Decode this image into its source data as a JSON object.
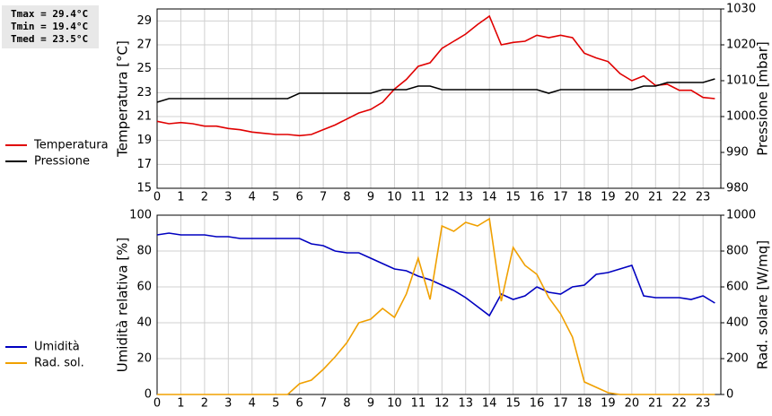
{
  "chart_data": [
    {
      "type": "line",
      "annotations": [
        "Tmax = 29.4°C",
        "Tmin = 19.4°C",
        "Tmed = 23.5°C"
      ],
      "y_label": "Temperatura [°C]",
      "y2_label": "Pressione [mbar]",
      "x": [
        0,
        0.5,
        1,
        1.5,
        2,
        2.5,
        3,
        3.5,
        4,
        4.5,
        5,
        5.5,
        6,
        6.5,
        7,
        7.5,
        8,
        8.5,
        9,
        9.5,
        10,
        10.5,
        11,
        11.5,
        12,
        12.5,
        13,
        13.5,
        14,
        14.5,
        15,
        15.5,
        16,
        16.5,
        17,
        17.5,
        18,
        18.5,
        19,
        19.5,
        20,
        20.5,
        21,
        21.5,
        22,
        22.5,
        23,
        23.5
      ],
      "xlim": [
        0,
        23.75
      ],
      "xticks": [
        0,
        1,
        2,
        3,
        4,
        5,
        6,
        7,
        8,
        9,
        10,
        11,
        12,
        13,
        14,
        15,
        16,
        17,
        18,
        19,
        20,
        21,
        22,
        23
      ],
      "ylim": [
        15,
        30
      ],
      "yticks": [
        15,
        17,
        19,
        21,
        23,
        25,
        27,
        29
      ],
      "y2lim": [
        980,
        1030
      ],
      "y2ticks": [
        980,
        990,
        1000,
        1010,
        1020,
        1030
      ],
      "grid": true,
      "series": [
        {
          "name": "Temperatura",
          "color": "#e00000",
          "values": [
            20.6,
            20.4,
            20.5,
            20.4,
            20.2,
            20.2,
            20.0,
            19.9,
            19.7,
            19.6,
            19.5,
            19.5,
            19.4,
            19.5,
            19.9,
            20.3,
            20.8,
            21.3,
            21.6,
            22.2,
            23.3,
            24.1,
            25.2,
            25.5,
            26.7,
            27.3,
            27.9,
            28.7,
            29.4,
            27.0,
            27.2,
            27.3,
            27.8,
            27.6,
            27.8,
            27.6,
            26.3,
            25.9,
            25.6,
            24.6,
            24.0,
            24.4,
            23.6,
            23.7,
            23.2,
            23.2,
            22.6,
            22.5
          ]
        },
        {
          "name": "Pressione",
          "color": "#000000",
          "axis": "y2",
          "values": [
            1004,
            1005,
            1005,
            1005,
            1005,
            1005,
            1005,
            1005,
            1005,
            1005,
            1005,
            1005,
            1006.5,
            1006.5,
            1006.5,
            1006.5,
            1006.5,
            1006.5,
            1006.5,
            1007.5,
            1007.5,
            1007.5,
            1008.5,
            1008.5,
            1007.5,
            1007.5,
            1007.5,
            1007.5,
            1007.5,
            1007.5,
            1007.5,
            1007.5,
            1007.5,
            1006.5,
            1007.5,
            1007.5,
            1007.5,
            1007.5,
            1007.5,
            1007.5,
            1007.5,
            1008.5,
            1008.5,
            1009.5,
            1009.5,
            1009.5,
            1009.5,
            1010.5
          ]
        }
      ]
    },
    {
      "type": "line",
      "y_label": "Umidità relativa [%]",
      "y2_label": "Rad. solare [W/mq]",
      "x": [
        0,
        0.5,
        1,
        1.5,
        2,
        2.5,
        3,
        3.5,
        4,
        4.5,
        5,
        5.5,
        6,
        6.5,
        7,
        7.5,
        8,
        8.5,
        9,
        9.5,
        10,
        10.5,
        11,
        11.5,
        12,
        12.5,
        13,
        13.5,
        14,
        14.5,
        15,
        15.5,
        16,
        16.5,
        17,
        17.5,
        18,
        18.5,
        19,
        19.5,
        20,
        20.5,
        21,
        21.5,
        22,
        22.5,
        23,
        23.5
      ],
      "xlim": [
        0,
        23.75
      ],
      "xticks": [
        0,
        1,
        2,
        3,
        4,
        5,
        6,
        7,
        8,
        9,
        10,
        11,
        12,
        13,
        14,
        15,
        16,
        17,
        18,
        19,
        20,
        21,
        22,
        23
      ],
      "ylim": [
        0,
        100
      ],
      "yticks": [
        0,
        20,
        40,
        60,
        80,
        100
      ],
      "y2lim": [
        0,
        1000
      ],
      "y2ticks": [
        0,
        200,
        400,
        600,
        800,
        1000
      ],
      "grid": true,
      "series": [
        {
          "name": "Umidità",
          "color": "#0000c0",
          "values": [
            89,
            90,
            89,
            89,
            89,
            88,
            88,
            87,
            87,
            87,
            87,
            87,
            87,
            84,
            83,
            80,
            79,
            79,
            76,
            73,
            70,
            69,
            66,
            64,
            61,
            58,
            54,
            49,
            44,
            56,
            53,
            55,
            60,
            57,
            56,
            60,
            61,
            67,
            68,
            70,
            72,
            55,
            54,
            54,
            54,
            53,
            55,
            51
          ]
        },
        {
          "name": "Rad. sol.",
          "color": "#f0a000",
          "axis": "y2",
          "values": [
            0,
            0,
            0,
            0,
            0,
            0,
            0,
            0,
            0,
            0,
            0,
            0,
            60,
            80,
            140,
            210,
            290,
            400,
            420,
            480,
            430,
            560,
            760,
            530,
            940,
            910,
            960,
            940,
            980,
            520,
            820,
            720,
            670,
            540,
            450,
            320,
            70,
            40,
            10,
            0,
            0,
            0,
            0,
            0,
            0,
            0,
            0,
            0
          ]
        }
      ]
    }
  ]
}
